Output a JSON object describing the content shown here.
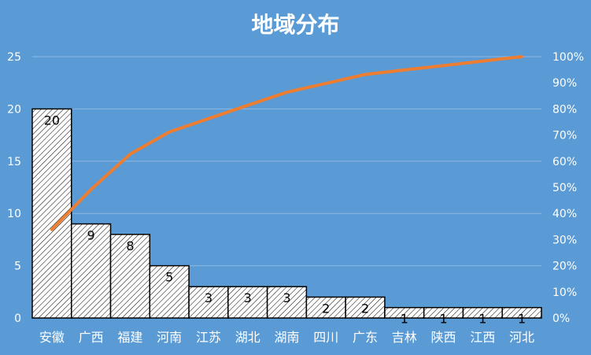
{
  "chart_data": {
    "type": "bar",
    "title": "地域分布",
    "categories": [
      "安徽",
      "广西",
      "福建",
      "河南",
      "江苏",
      "湖北",
      "湖南",
      "四川",
      "广东",
      "吉林",
      "陕西",
      "江西",
      "河北"
    ],
    "series": [
      {
        "type": "bar",
        "values": [
          20,
          9,
          8,
          5,
          3,
          3,
          3,
          2,
          2,
          1,
          1,
          1,
          1
        ],
        "axis": "left"
      },
      {
        "type": "line",
        "values": [
          33.9,
          49.2,
          62.7,
          71.2,
          76.3,
          81.4,
          86.4,
          89.8,
          93.2,
          94.9,
          96.6,
          98.3,
          100
        ],
        "axis": "right",
        "unit": "%"
      }
    ],
    "y_left": {
      "min": 0,
      "max": 25,
      "ticks": [
        "0",
        "5",
        "10",
        "15",
        "20",
        "25"
      ]
    },
    "y_right": {
      "min": 0,
      "max": 100,
      "ticks": [
        "0%",
        "10%",
        "20%",
        "30%",
        "40%",
        "50%",
        "60%",
        "70%",
        "80%",
        "90%",
        "100%"
      ]
    },
    "data_labels": [
      "20",
      "9",
      "8",
      "5",
      "3",
      "3",
      "3",
      "2",
      "2",
      "1",
      "1",
      "1",
      "1"
    ],
    "grid": true,
    "legend": "none",
    "colors": {
      "background": "#5b9bd5",
      "bar_fill": "#ffffff",
      "bar_hatch": "#000000",
      "line": "#ed7d31",
      "grid": "#8db8e4"
    }
  }
}
